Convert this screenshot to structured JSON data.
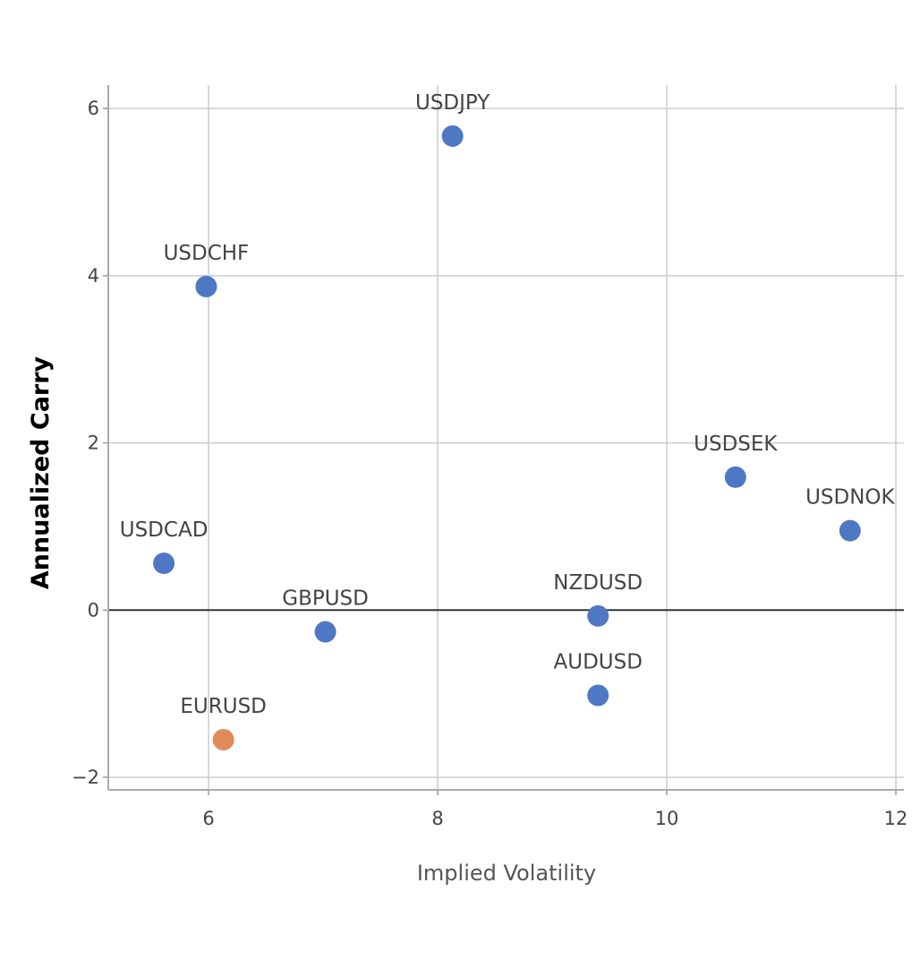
{
  "chart_data": {
    "type": "scatter",
    "title": "",
    "xlabel": "Implied Volatility",
    "ylabel": "Annualized Carry",
    "xlim": [
      5.125,
      12.07
    ],
    "ylim": [
      -2.15,
      6.28
    ],
    "xticks": [
      6,
      8,
      10,
      12
    ],
    "yticks": [
      -2,
      0,
      2,
      4,
      6
    ],
    "grid": true,
    "points": [
      {
        "label": "USDJPY",
        "x": 8.13,
        "y": 5.67,
        "color": "#4f78c4"
      },
      {
        "label": "USDCHF",
        "x": 5.98,
        "y": 3.87,
        "color": "#4f78c4"
      },
      {
        "label": "USDSEK",
        "x": 10.6,
        "y": 1.59,
        "color": "#4f78c4"
      },
      {
        "label": "USDNOK",
        "x": 11.6,
        "y": 0.95,
        "color": "#4f78c4"
      },
      {
        "label": "USDCAD",
        "x": 5.61,
        "y": 0.56,
        "color": "#4f78c4"
      },
      {
        "label": "GBPUSD",
        "x": 7.02,
        "y": -0.26,
        "color": "#4f78c4"
      },
      {
        "label": "NZDUSD",
        "x": 9.4,
        "y": -0.07,
        "color": "#4f78c4"
      },
      {
        "label": "AUDUSD",
        "x": 9.4,
        "y": -1.02,
        "color": "#4f78c4"
      },
      {
        "label": "EURUSD",
        "x": 6.13,
        "y": -1.55,
        "color": "#e08a5c"
      }
    ]
  }
}
